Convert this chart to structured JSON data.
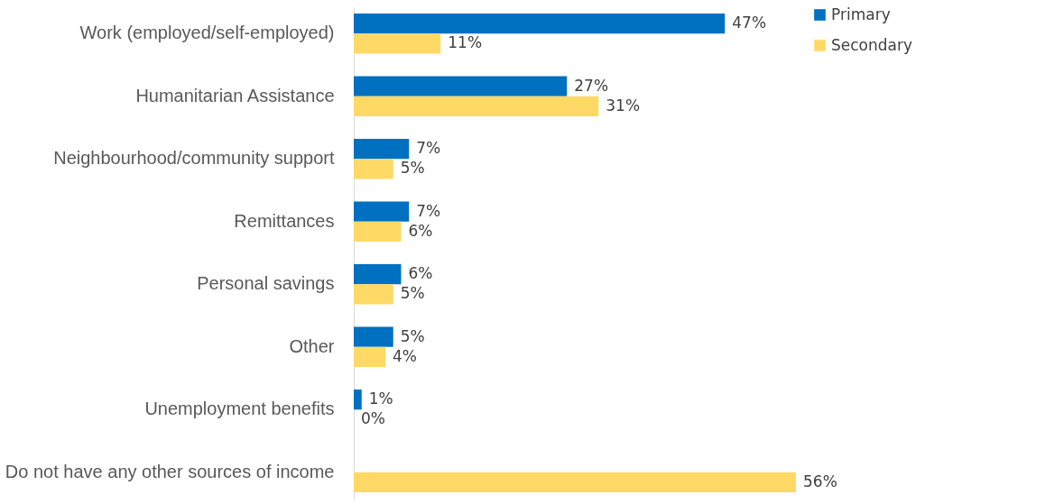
{
  "chart_data": {
    "type": "bar",
    "orientation": "horizontal",
    "categories": [
      "Work (employed/self-employed)",
      "Humanitarian Assistance",
      "Neighbourhood/community support",
      "Remittances",
      "Personal savings",
      "Other",
      "Unemployment benefits",
      "Do not have any other sources of income"
    ],
    "series": [
      {
        "name": "Primary",
        "color": "#0070c0",
        "values": [
          47,
          27,
          7,
          7,
          6,
          5,
          1,
          null
        ],
        "value_labels": [
          "47%",
          "27%",
          "7%",
          "7%",
          "6%",
          "5%",
          "1%",
          null
        ]
      },
      {
        "name": "Secondary",
        "color": "#ffd966",
        "values": [
          11,
          31,
          5,
          6,
          5,
          4,
          0,
          56
        ],
        "value_labels": [
          "11%",
          "31%",
          "5%",
          "6%",
          "5%",
          "4%",
          "0%",
          "56%"
        ]
      }
    ],
    "legend": "right",
    "grid": false
  }
}
